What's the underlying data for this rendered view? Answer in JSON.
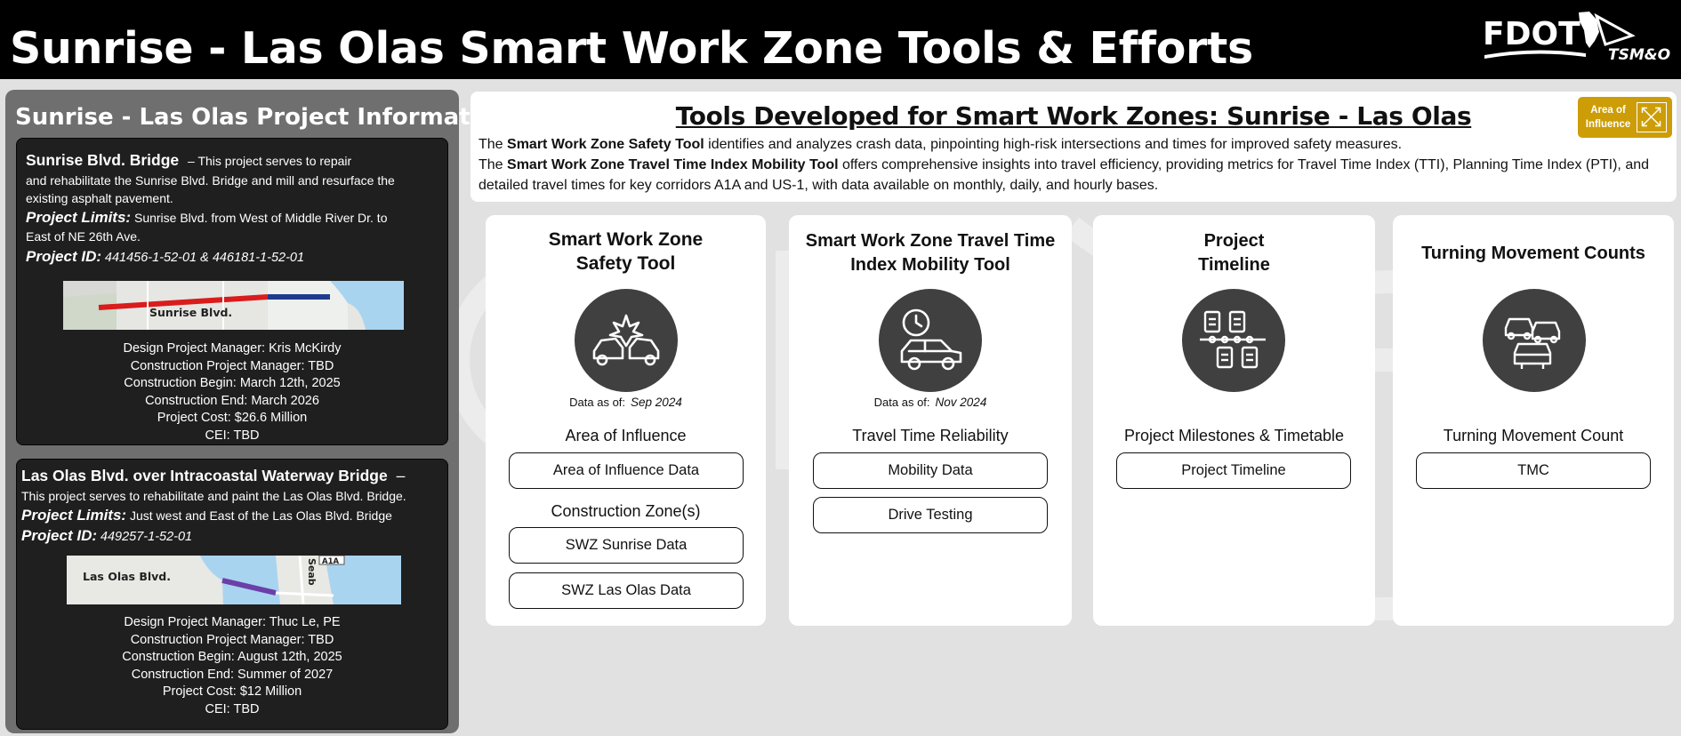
{
  "header": {
    "title": "Sunrise - Las Olas Smart Work Zone Tools & Efforts",
    "logo_text": "FDOT",
    "logo_subtext": "TSM&O"
  },
  "project_panel": {
    "title": "Sunrise - Las Olas Project Information",
    "projects": [
      {
        "name": "Sunrise Blvd. Bridge",
        "desc_line1": "– This project serves to repair",
        "desc_line2": "and rehabilitate the Sunrise Blvd. Bridge and mill and resurface the",
        "desc_line3": "existing asphalt pavement.",
        "limits_label": "Project Limits:",
        "limits_line1": "Sunrise Blvd. from West of Middle River Dr. to",
        "limits_line2": "East of NE 26th Ave.",
        "id_label": "Project ID:",
        "id_value": "441456-1-52-01 & 446181-1-52-01",
        "map_label": "Sunrise Blvd.",
        "details": [
          "Design Project Manager: Kris McKirdy",
          "Construction Project Manager: TBD",
          "Construction Begin: March 12th, 2025",
          "Construction End: March 2026",
          "Project Cost: $26.6 Million",
          "CEI: TBD"
        ]
      },
      {
        "name": "Las Olas Blvd. over Intracoastal Waterway Bridge",
        "name_dash": "–",
        "desc_line1": "This project serves to rehabilitate and paint the Las Olas Blvd. Bridge.",
        "limits_label": "Project Limits:",
        "limits_line1": "Just west and East of the Las Olas Blvd. Bridge",
        "id_label": "Project ID:",
        "id_value": "449257-1-52-01",
        "map_label": "Las Olas Blvd.",
        "map_label_2": "Seab",
        "map_shield": "A1A",
        "details": [
          "Design Project Manager: Thuc Le, PE",
          "Construction Project Manager: TBD",
          "Construction Begin: August 12th, 2025",
          "Construction End: Summer of 2027",
          "Project Cost: $12 Million",
          "CEI: TBD"
        ]
      }
    ]
  },
  "intro": {
    "title": "Tools Developed for Smart Work Zones: Sunrise - Las Olas",
    "line1_pre": "The ",
    "line1_bold": "Smart Work Zone Safety Tool",
    "line1_post": " identifies and analyzes crash data, pinpointing high-risk intersections and times for improved safety measures.",
    "line2_pre": "The ",
    "line2_bold": "Smart Work Zone Travel Time Index Mobility Tool",
    "line2_post": " offers comprehensive insights into travel efficiency, providing metrics for Travel Time Index (TTI), Planning Time Index (PTI), and detailed travel times for key corridors A1A and US-1, with data available on monthly, daily, and hourly bases.",
    "badge_line1": "Area of",
    "badge_line2": "Influence"
  },
  "tools": {
    "safety": {
      "title_line1": "Smart Work Zone",
      "title_line2": "Safety Tool",
      "icon": "car-crash-icon",
      "as_of_label": "Data as of:",
      "as_of_value": "Sep 2024",
      "section1": "Area of Influence",
      "btn_aoi": "Area of Influence Data",
      "section2": "Construction Zone(s)",
      "btn_sunrise": "SWZ Sunrise Data",
      "btn_lasolas": "SWZ Las Olas Data"
    },
    "mobility": {
      "title_line1": "Smart Work Zone Travel Time",
      "title_line2": "Index Mobility Tool",
      "icon": "car-clock-icon",
      "as_of_label": "Data as of:",
      "as_of_value": "Nov 2024",
      "section1": "Travel Time Reliability",
      "btn_mobility": "Mobility Data",
      "btn_drive": "Drive Testing"
    },
    "timeline": {
      "title_line1": "Project",
      "title_line2": "Timeline",
      "icon": "timeline-clipboard-icon",
      "section1": "Project Milestones & Timetable",
      "btn_timeline": "Project Timeline"
    },
    "tmc": {
      "title": "Turning Movement Counts",
      "icon": "traffic-cars-icon",
      "section1": "Turning Movement Count",
      "btn_tmc": "TMC"
    }
  },
  "colors": {
    "header_bg": "#000000",
    "page_bg": "#e1e1e1",
    "panel_bg": "#6f6f6f",
    "card_bg": "#1f1f1f",
    "badge": "#cc9d06",
    "icon_circle": "#404040",
    "sunrise_route": "#d91c1c",
    "lasolas_route": "#6b3fa8"
  }
}
